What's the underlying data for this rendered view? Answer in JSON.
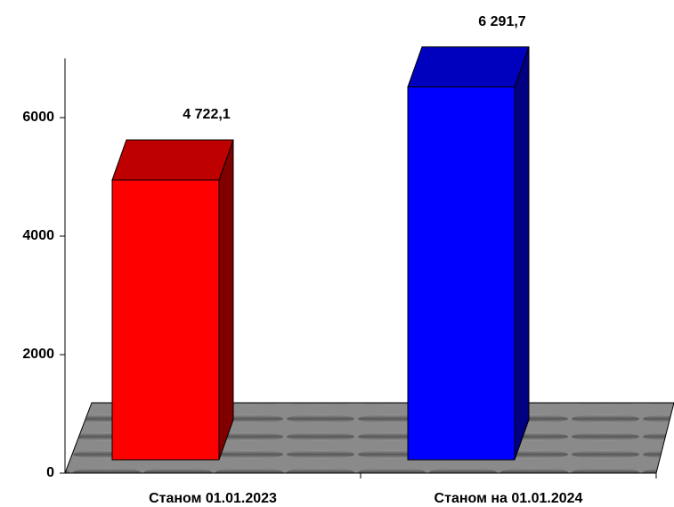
{
  "chart_data": {
    "type": "bar3d",
    "categories": [
      "Станом 01.01.2023",
      "Станом на 01.01.2024"
    ],
    "values": [
      4722.1,
      6291.7
    ],
    "value_labels": [
      "4 722,1",
      "6 291,7"
    ],
    "colors": [
      "#ff0000",
      "#0000ff"
    ],
    "ylim": [
      0,
      7000
    ],
    "yticks": [
      0,
      2000,
      4000,
      6000
    ]
  }
}
